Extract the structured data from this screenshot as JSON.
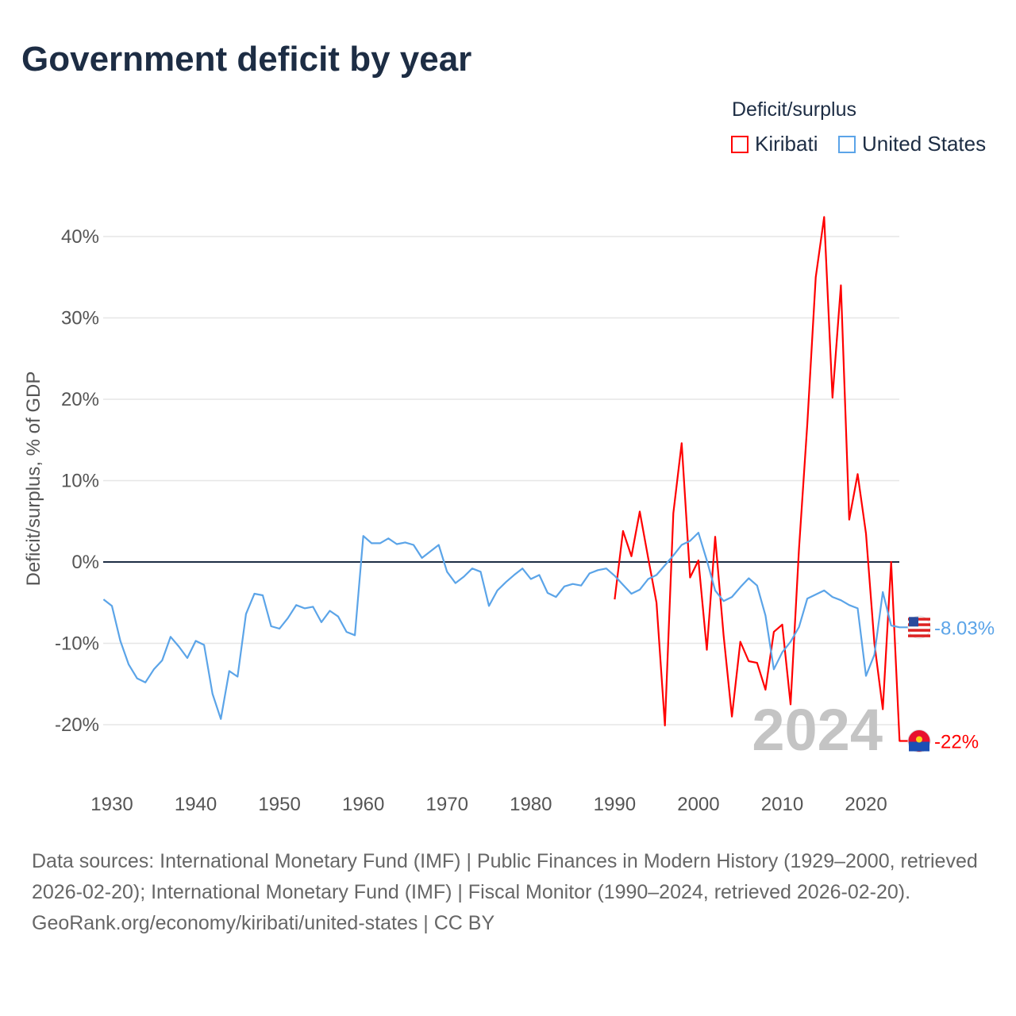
{
  "chart_data": {
    "type": "line",
    "title": "Government deficit by year",
    "ylabel": "Deficit/surplus, % of GDP",
    "xlabel": "",
    "xlim": [
      1929,
      2024
    ],
    "ylim": [
      -26,
      44
    ],
    "yticks": [
      -20,
      -10,
      0,
      10,
      20,
      30,
      40
    ],
    "ytick_labels": [
      "-20%",
      "-10%",
      "0%",
      "10%",
      "20%",
      "30%",
      "40%"
    ],
    "xticks": [
      1930,
      1940,
      1950,
      1960,
      1970,
      1980,
      1990,
      2000,
      2010,
      2020
    ],
    "xtick_labels": [
      "1930",
      "1940",
      "1950",
      "1960",
      "1970",
      "1980",
      "1990",
      "2000",
      "2010",
      "2020"
    ],
    "grid": true,
    "legend_title": "Deficit/surplus",
    "legend_position": "top-right",
    "year_watermark": "2024",
    "series": [
      {
        "name": "Kiribati",
        "color": "#ff0000",
        "end_label": "-22%",
        "start_year": 1990,
        "values": [
          -4.6,
          3.8,
          0.7,
          6.2,
          0.5,
          -5.0,
          -20.1,
          6.0,
          14.6,
          -1.9,
          0.2,
          -10.8,
          3.1,
          -9.0,
          -19.0,
          -9.8,
          -12.2,
          -12.4,
          -15.7,
          -8.6,
          -7.7,
          -17.5,
          1.6,
          17.0,
          35.0,
          42.4,
          20.2,
          34.0,
          5.2,
          10.8,
          3.5,
          -10.0,
          -18.1,
          0.0,
          -22.0
        ]
      },
      {
        "name": "United States",
        "color": "#5ba4e8",
        "end_label": "-8.03%",
        "start_year": 1929,
        "values": [
          -4.6,
          -5.4,
          -9.7,
          -12.6,
          -14.3,
          -14.8,
          -13.2,
          -12.1,
          -9.2,
          -10.4,
          -11.8,
          -9.7,
          -10.2,
          -16.2,
          -19.3,
          -13.4,
          -14.1,
          -6.4,
          -3.9,
          -4.1,
          -7.9,
          -8.2,
          -6.9,
          -5.3,
          -5.7,
          -5.5,
          -7.4,
          -6.0,
          -6.7,
          -8.6,
          -9.0,
          3.2,
          2.3,
          2.3,
          2.9,
          2.2,
          2.4,
          2.1,
          0.5,
          1.3,
          2.1,
          -1.2,
          -2.6,
          -1.8,
          -0.8,
          -1.2,
          -5.4,
          -3.5,
          -2.5,
          -1.6,
          -0.8,
          -2.1,
          -1.6,
          -3.8,
          -4.3,
          -3.0,
          -2.7,
          -2.9,
          -1.4,
          -1.0,
          -0.8,
          -1.7,
          -2.8,
          -3.9,
          -3.4,
          -2.1,
          -1.6,
          -0.4,
          0.8,
          2.1,
          2.6,
          3.6,
          0.2,
          -3.5,
          -4.8,
          -4.3,
          -3.1,
          -2.0,
          -2.9,
          -6.6,
          -13.2,
          -11.1,
          -9.8,
          -8.0,
          -4.5,
          -4.0,
          -3.5,
          -4.3,
          -4.7,
          -5.3,
          -5.7,
          -14.0,
          -11.4,
          -3.7,
          -7.8,
          -8.03
        ]
      }
    ]
  },
  "footer": {
    "sources": "Data sources: International Monetary Fund (IMF) | Public Finances in Modern History (1929–2000, retrieved 2026-02-20); International Monetary Fund (IMF) | Fiscal Monitor (1990–2024, retrieved 2026-02-20).",
    "link": "GeoRank.org/economy/kiribati/united-states | CC BY"
  }
}
